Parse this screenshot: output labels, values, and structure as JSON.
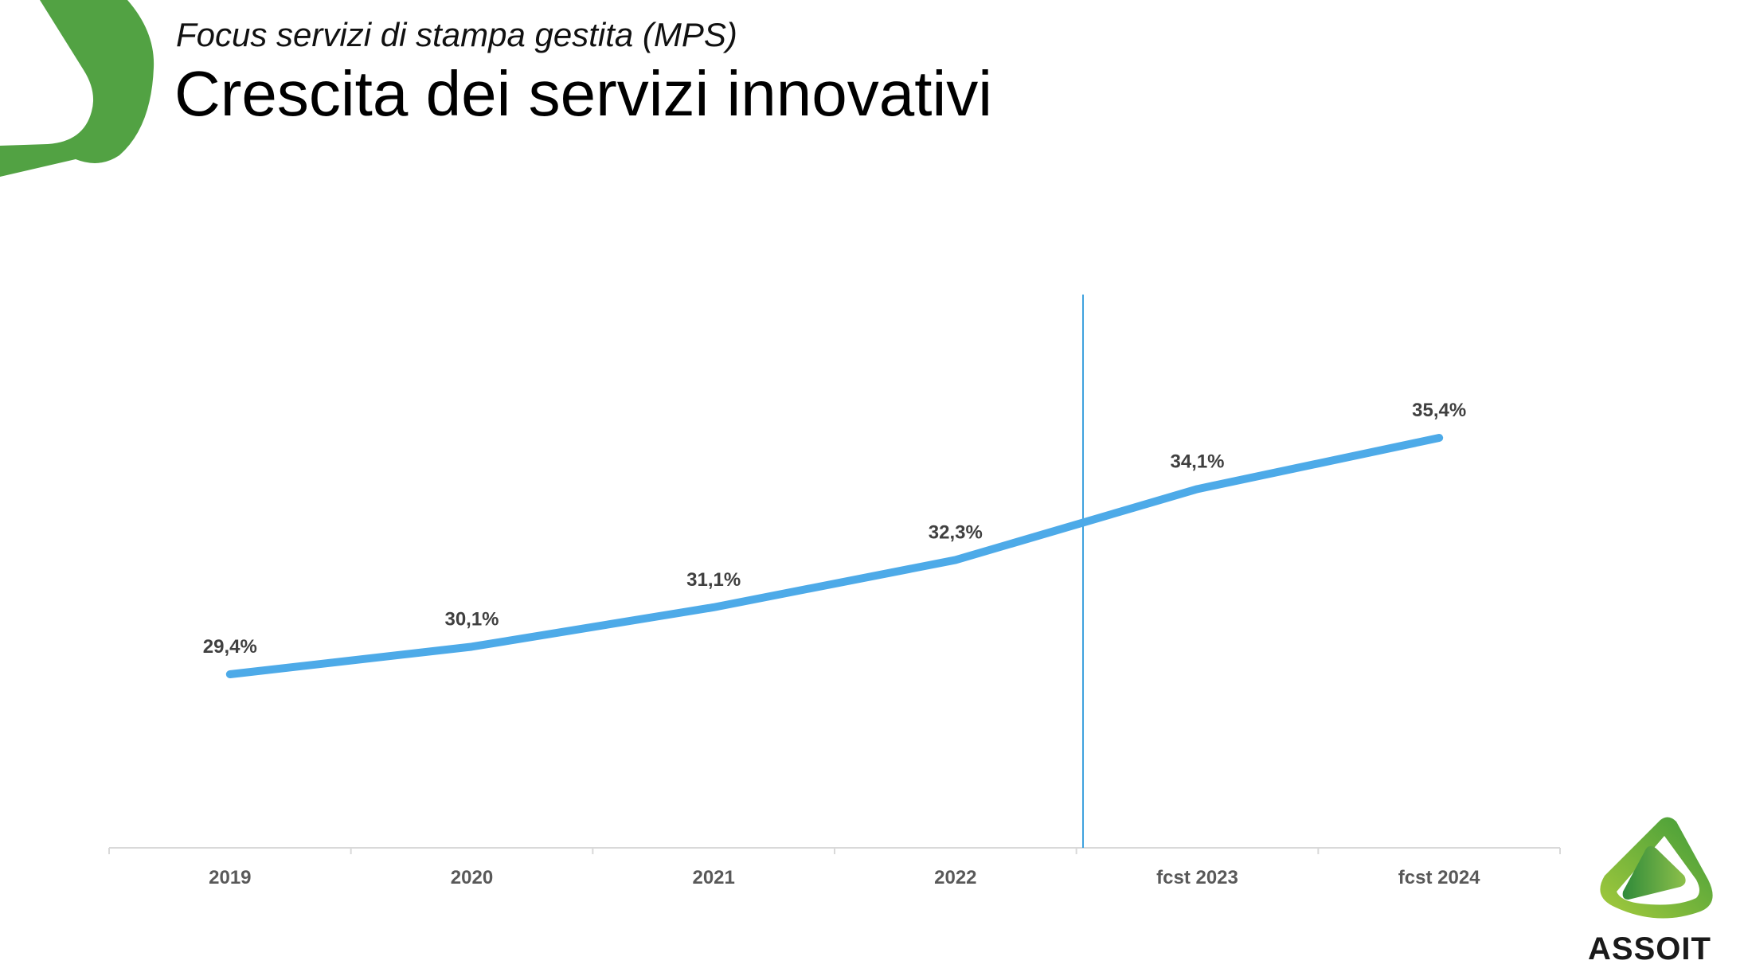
{
  "header": {
    "subtitle": "Focus servizi di stampa gestita (MPS)",
    "title": "Crescita dei servizi innovativi"
  },
  "logo": {
    "text": "ASSOIT"
  },
  "colors": {
    "line": "#4DAAE8",
    "divider": "#3FA2DE",
    "axis": "#D9D9D9",
    "brand_green": "#52A243"
  },
  "chart_data": {
    "type": "line",
    "title": "Crescita dei servizi innovativi",
    "categories": [
      "2019",
      "2020",
      "2021",
      "2022",
      "fcst 2023",
      "fcst 2024"
    ],
    "series": [
      {
        "name": "Servizi innovativi",
        "values": [
          29.4,
          30.1,
          31.1,
          32.3,
          34.1,
          35.4
        ]
      }
    ],
    "data_labels": [
      "29,4%",
      "30,1%",
      "31,1%",
      "32,3%",
      "34,1%",
      "35,4%"
    ],
    "xlabel": "",
    "ylabel": "",
    "grid": false,
    "divider_between": [
      "2022",
      "fcst 2023"
    ]
  }
}
